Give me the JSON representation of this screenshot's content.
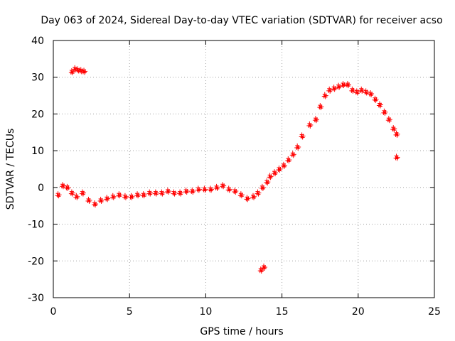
{
  "chart_data": {
    "type": "scatter",
    "title": "Day 063 of 2024, Sidereal Day-to-day VTEC variation (SDTVAR) for receiver acso",
    "xlabel": "GPS time / hours",
    "ylabel": "SDTVAR / TECUs",
    "xlim": [
      0,
      25
    ],
    "ylim": [
      -30,
      40
    ],
    "xticks": [
      "0",
      "5",
      "10",
      "15",
      "20",
      "25"
    ],
    "yticks": [
      "-30",
      "-20",
      "-10",
      "0",
      "10",
      "20",
      "30",
      "40"
    ],
    "grid": true,
    "series": [
      {
        "name": "SDTVAR",
        "color": "#ff0000",
        "marker": "plus",
        "points": [
          [
            1.3,
            31.5
          ],
          [
            1.5,
            32.3
          ],
          [
            1.7,
            32.0
          ],
          [
            1.9,
            31.8
          ],
          [
            2.1,
            31.6
          ],
          [
            0.4,
            -2.0
          ],
          [
            0.7,
            0.5
          ],
          [
            1.0,
            0.0
          ],
          [
            1.3,
            -1.5
          ],
          [
            1.6,
            -2.5
          ],
          [
            2.0,
            -1.5
          ],
          [
            2.4,
            -3.5
          ],
          [
            2.8,
            -4.5
          ],
          [
            3.2,
            -3.5
          ],
          [
            3.6,
            -3.0
          ],
          [
            4.0,
            -2.5
          ],
          [
            4.4,
            -2.0
          ],
          [
            4.8,
            -2.5
          ],
          [
            5.2,
            -2.5
          ],
          [
            5.6,
            -2.0
          ],
          [
            6.0,
            -2.0
          ],
          [
            6.4,
            -1.5
          ],
          [
            6.8,
            -1.5
          ],
          [
            7.2,
            -1.5
          ],
          [
            7.6,
            -1.0
          ],
          [
            8.0,
            -1.5
          ],
          [
            8.4,
            -1.5
          ],
          [
            8.8,
            -1.0
          ],
          [
            9.2,
            -1.0
          ],
          [
            9.6,
            -0.5
          ],
          [
            10.0,
            -0.5
          ],
          [
            10.4,
            -0.5
          ],
          [
            10.8,
            0.0
          ],
          [
            11.2,
            0.5
          ],
          [
            11.6,
            -0.5
          ],
          [
            12.0,
            -1.0
          ],
          [
            12.4,
            -2.0
          ],
          [
            12.8,
            -3.0
          ],
          [
            13.2,
            -2.5
          ],
          [
            13.5,
            -1.5
          ],
          [
            13.8,
            0.0
          ],
          [
            14.1,
            1.5
          ],
          [
            14.3,
            3.0
          ],
          [
            14.6,
            4.0
          ],
          [
            14.9,
            5.0
          ],
          [
            15.2,
            6.0
          ],
          [
            15.5,
            7.5
          ],
          [
            15.8,
            9.0
          ],
          [
            16.1,
            11.0
          ],
          [
            16.4,
            14.0
          ],
          [
            16.9,
            17.0
          ],
          [
            17.3,
            18.5
          ],
          [
            17.6,
            22.0
          ],
          [
            17.9,
            25.0
          ],
          [
            18.2,
            26.5
          ],
          [
            18.5,
            27.0
          ],
          [
            18.8,
            27.5
          ],
          [
            19.1,
            28.0
          ],
          [
            19.4,
            28.0
          ],
          [
            19.7,
            26.5
          ],
          [
            20.0,
            26.0
          ],
          [
            20.3,
            26.5
          ],
          [
            20.6,
            26.0
          ],
          [
            20.9,
            25.5
          ],
          [
            21.2,
            24.0
          ],
          [
            21.5,
            22.5
          ],
          [
            21.8,
            20.5
          ],
          [
            22.1,
            18.5
          ],
          [
            22.4,
            16.0
          ],
          [
            22.6,
            14.5
          ],
          [
            22.6,
            8.2
          ],
          [
            13.7,
            -22.5
          ],
          [
            13.9,
            -21.7
          ]
        ]
      }
    ]
  }
}
